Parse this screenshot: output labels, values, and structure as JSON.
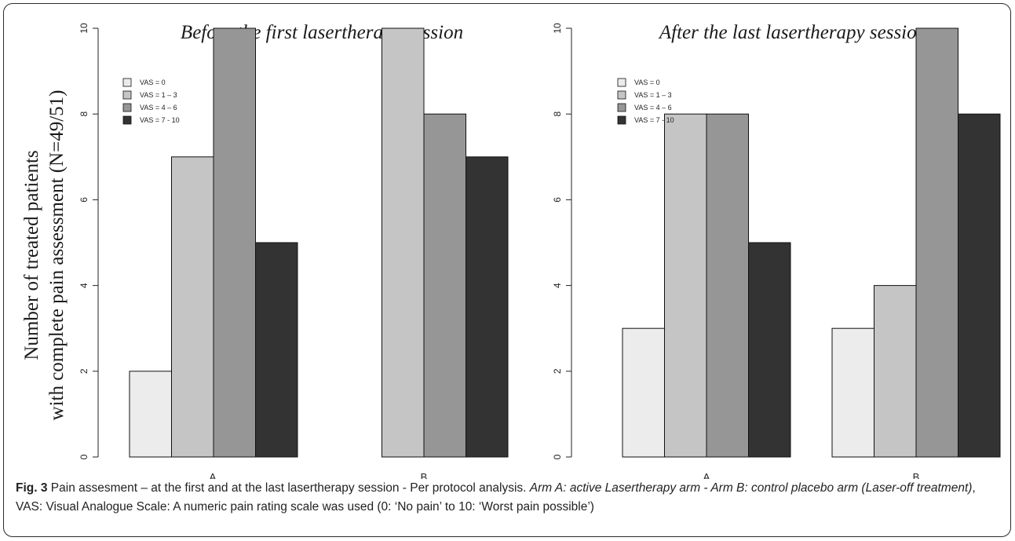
{
  "y_axis_label_line1": "Number of treated patients",
  "y_axis_label_line2": "with complete pain assessment (N=49/51)",
  "caption": {
    "fig": "Fig. 3",
    "text1": " Pain assesment – at the first and at the last lasertherapy session - Per protocol analysis. ",
    "italic": "Arm A: active Lasertherapy arm - Arm B: control placebo arm (Laser-off treatment)",
    "text2": ", VAS: Visual Analogue Scale: A numeric pain rating scale was used (0: ‘No pain’ to 10: ‘Worst pain possible’)"
  },
  "colors": [
    "#ebeceb",
    "#c4c5c4",
    "#969696",
    "#333333"
  ],
  "chart_data": [
    {
      "type": "bar",
      "title": "Before the first lasertherapy session",
      "categories": [
        "A",
        "B"
      ],
      "series": [
        {
          "name": "VAS = 0",
          "values": [
            2,
            0
          ]
        },
        {
          "name": "VAS = 1 – 3",
          "values": [
            7,
            10
          ]
        },
        {
          "name": "VAS = 4 – 6",
          "values": [
            10,
            8
          ]
        },
        {
          "name": "VAS = 7 - 10",
          "values": [
            5,
            7
          ]
        }
      ],
      "ylim": [
        0,
        10
      ],
      "yticks": [
        "0",
        "2",
        "4",
        "6",
        "8",
        "10"
      ],
      "legend": "top-left",
      "grid": false
    },
    {
      "type": "bar",
      "title": "After the last lasertherapy session",
      "categories": [
        "A",
        "B"
      ],
      "series": [
        {
          "name": "VAS = 0",
          "values": [
            3,
            3
          ]
        },
        {
          "name": "VAS = 1 – 3",
          "values": [
            8,
            4
          ]
        },
        {
          "name": "VAS = 4 – 6",
          "values": [
            8,
            10
          ]
        },
        {
          "name": "VAS = 7 - 10",
          "values": [
            5,
            8
          ]
        }
      ],
      "ylim": [
        0,
        10
      ],
      "yticks": [
        "0",
        "2",
        "4",
        "6",
        "8",
        "10"
      ],
      "legend": "top-left",
      "grid": false
    }
  ]
}
